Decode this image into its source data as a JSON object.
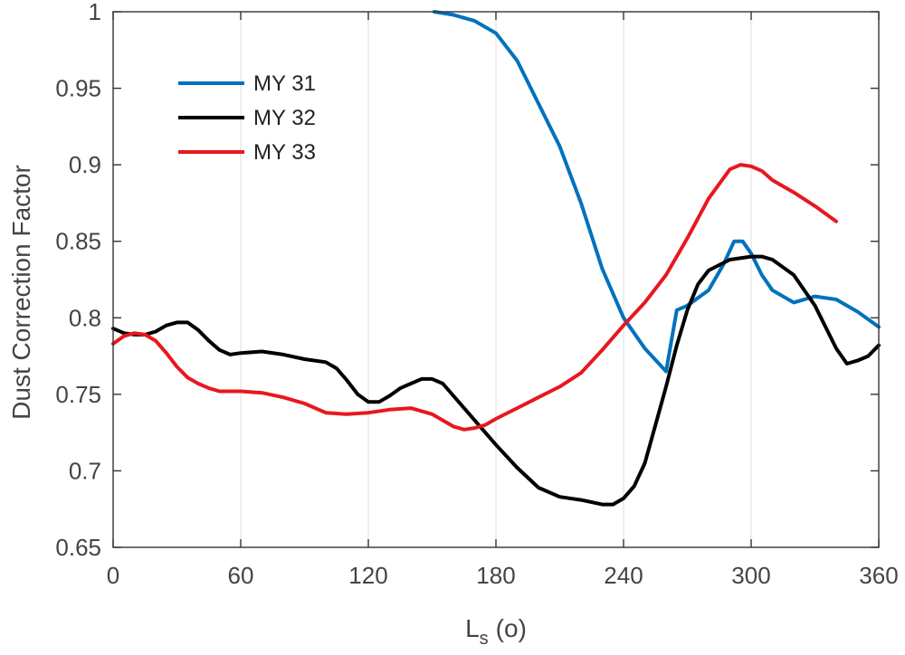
{
  "chart_data": {
    "type": "line",
    "xlabel_main": "L",
    "xlabel_sub": "s",
    "xlabel_unit": "(o)",
    "ylabel": "Dust Correction Factor",
    "xlim": [
      0,
      360
    ],
    "ylim": [
      0.65,
      1.0
    ],
    "xticks": [
      0,
      60,
      120,
      180,
      240,
      300,
      360
    ],
    "xtick_labels": [
      "0",
      "60",
      "120",
      "180",
      "240",
      "300",
      "360"
    ],
    "yticks": [
      0.65,
      0.7,
      0.75,
      0.8,
      0.85,
      0.9,
      0.95,
      1.0
    ],
    "ytick_labels": [
      "0.65",
      "0.7",
      "0.75",
      "0.8",
      "0.85",
      "0.9",
      "0.95",
      "1"
    ],
    "grid": "vertical",
    "legend_position": "top-left",
    "series": [
      {
        "name": "MY 31",
        "color": "#0072BD",
        "x": [
          151,
          160,
          170,
          180,
          190,
          200,
          210,
          220,
          230,
          240,
          250,
          260,
          265,
          270,
          280,
          287,
          292,
          296,
          300,
          305,
          310,
          320,
          330,
          340,
          350,
          360
        ],
        "y": [
          1.0,
          0.998,
          0.994,
          0.986,
          0.968,
          0.94,
          0.912,
          0.875,
          0.832,
          0.8,
          0.78,
          0.765,
          0.805,
          0.808,
          0.818,
          0.835,
          0.85,
          0.85,
          0.842,
          0.828,
          0.818,
          0.81,
          0.814,
          0.812,
          0.804,
          0.794
        ]
      },
      {
        "name": "MY 32",
        "color": "#000000",
        "x": [
          0,
          5,
          10,
          15,
          20,
          25,
          30,
          35,
          40,
          45,
          50,
          55,
          60,
          70,
          80,
          90,
          100,
          105,
          110,
          115,
          120,
          125,
          130,
          135,
          140,
          145,
          150,
          155,
          160,
          170,
          180,
          190,
          200,
          210,
          220,
          230,
          235,
          240,
          245,
          250,
          255,
          260,
          265,
          270,
          275,
          280,
          290,
          300,
          305,
          310,
          320,
          330,
          340,
          345,
          350,
          355,
          360
        ],
        "y": [
          0.793,
          0.79,
          0.789,
          0.789,
          0.791,
          0.795,
          0.797,
          0.797,
          0.792,
          0.785,
          0.779,
          0.776,
          0.777,
          0.778,
          0.776,
          0.773,
          0.771,
          0.767,
          0.759,
          0.75,
          0.745,
          0.745,
          0.749,
          0.754,
          0.757,
          0.76,
          0.76,
          0.757,
          0.749,
          0.733,
          0.717,
          0.702,
          0.689,
          0.683,
          0.681,
          0.678,
          0.678,
          0.682,
          0.69,
          0.705,
          0.73,
          0.755,
          0.782,
          0.805,
          0.822,
          0.831,
          0.838,
          0.84,
          0.84,
          0.838,
          0.828,
          0.808,
          0.78,
          0.77,
          0.772,
          0.775,
          0.782
        ]
      },
      {
        "name": "MY 33",
        "color": "#E8171F",
        "x": [
          0,
          5,
          10,
          15,
          20,
          25,
          30,
          35,
          40,
          45,
          50,
          55,
          60,
          70,
          80,
          90,
          100,
          110,
          120,
          130,
          140,
          150,
          160,
          165,
          170,
          175,
          180,
          190,
          200,
          210,
          220,
          230,
          240,
          250,
          260,
          270,
          280,
          290,
          295,
          300,
          305,
          310,
          320,
          330,
          340
        ],
        "y": [
          0.783,
          0.788,
          0.79,
          0.789,
          0.785,
          0.777,
          0.768,
          0.761,
          0.757,
          0.754,
          0.752,
          0.752,
          0.752,
          0.751,
          0.748,
          0.744,
          0.738,
          0.737,
          0.738,
          0.74,
          0.741,
          0.737,
          0.729,
          0.727,
          0.728,
          0.73,
          0.734,
          0.741,
          0.748,
          0.755,
          0.764,
          0.779,
          0.795,
          0.81,
          0.828,
          0.852,
          0.878,
          0.897,
          0.9,
          0.899,
          0.896,
          0.89,
          0.882,
          0.873,
          0.863
        ]
      }
    ]
  }
}
